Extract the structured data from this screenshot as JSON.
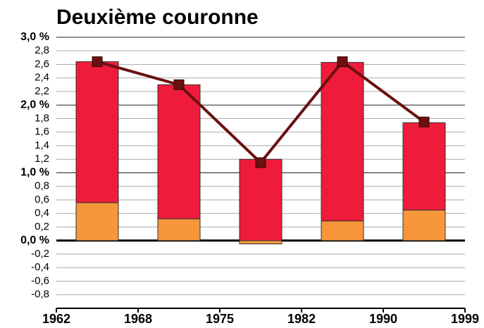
{
  "chart_data": {
    "type": "bar",
    "title": "Deuxième couronne",
    "period_bounds": [
      "1962",
      "1968",
      "1975",
      "1982",
      "1990",
      "1999"
    ],
    "ylim": [
      -1,
      3
    ],
    "yticks": [
      {
        "value": -0.8,
        "label": "-0,8"
      },
      {
        "value": -0.6,
        "label": "-0,6"
      },
      {
        "value": -0.4,
        "label": "-0,4"
      },
      {
        "value": -0.2,
        "label": "-0,2"
      },
      {
        "value": 0,
        "label": "0,0 %"
      },
      {
        "value": 0.2,
        "label": "0,2"
      },
      {
        "value": 0.4,
        "label": "0,4"
      },
      {
        "value": 0.6,
        "label": "0,6"
      },
      {
        "value": 0.8,
        "label": "0,8"
      },
      {
        "value": 1,
        "label": "1,0 %"
      },
      {
        "value": 1.2,
        "label": "1,2"
      },
      {
        "value": 1.4,
        "label": "1,4"
      },
      {
        "value": 1.6,
        "label": "1,6"
      },
      {
        "value": 1.8,
        "label": "1,8"
      },
      {
        "value": 2,
        "label": "2,0 %"
      },
      {
        "value": 2.2,
        "label": "2,2"
      },
      {
        "value": 2.4,
        "label": "2,4"
      },
      {
        "value": 2.6,
        "label": "2,6"
      },
      {
        "value": 2.8,
        "label": "2,8"
      },
      {
        "value": 3,
        "label": "3,0 %"
      }
    ],
    "grid": true,
    "series": [
      {
        "color": "#f7963a",
        "values": [
          0.56,
          0.32,
          -0.05,
          0.29,
          0.45
        ]
      },
      {
        "color": "#ee1c3a",
        "values": [
          2.08,
          1.98,
          1.2,
          2.34,
          1.29
        ]
      },
      {
        "type": "line",
        "color": "#6b1010",
        "values": [
          2.64,
          2.3,
          1.15,
          2.64,
          1.75
        ]
      }
    ]
  }
}
